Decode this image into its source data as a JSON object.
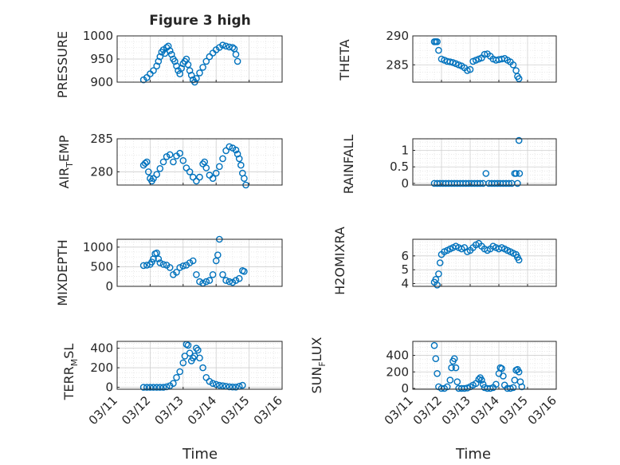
{
  "chart_data": [
    {
      "type": "scatter",
      "title": "Figure 3 high",
      "ylabel": "PRESSURE",
      "xlim": [
        "03/11",
        "03/16"
      ],
      "ylim": [
        900,
        1000
      ],
      "yticks": [
        900,
        950,
        1000
      ],
      "grid": true,
      "marker": "circle",
      "color": "#0072BD",
      "points": [
        [
          11.8,
          905
        ],
        [
          11.9,
          910
        ],
        [
          12.0,
          918
        ],
        [
          12.1,
          925
        ],
        [
          12.2,
          935
        ],
        [
          12.25,
          945
        ],
        [
          12.3,
          955
        ],
        [
          12.35,
          965
        ],
        [
          12.4,
          970
        ],
        [
          12.45,
          962
        ],
        [
          12.5,
          975
        ],
        [
          12.55,
          978
        ],
        [
          12.6,
          968
        ],
        [
          12.65,
          960
        ],
        [
          12.7,
          950
        ],
        [
          12.75,
          945
        ],
        [
          12.8,
          935
        ],
        [
          12.85,
          925
        ],
        [
          12.9,
          918
        ],
        [
          12.95,
          930
        ],
        [
          13.0,
          940
        ],
        [
          13.05,
          945
        ],
        [
          13.1,
          950
        ],
        [
          13.15,
          938
        ],
        [
          13.2,
          925
        ],
        [
          13.25,
          915
        ],
        [
          13.3,
          905
        ],
        [
          13.35,
          900
        ],
        [
          13.4,
          908
        ],
        [
          13.5,
          920
        ],
        [
          13.6,
          932
        ],
        [
          13.7,
          945
        ],
        [
          13.8,
          955
        ],
        [
          13.9,
          963
        ],
        [
          14.0,
          970
        ],
        [
          14.1,
          975
        ],
        [
          14.2,
          980
        ],
        [
          14.3,
          978
        ],
        [
          14.4,
          976
        ],
        [
          14.5,
          975
        ],
        [
          14.55,
          972
        ],
        [
          14.6,
          960
        ],
        [
          14.65,
          945
        ]
      ]
    },
    {
      "type": "scatter",
      "ylabel": "THETA",
      "xlim": [
        "03/11",
        "03/16"
      ],
      "ylim": [
        282,
        290
      ],
      "yticks": [
        285,
        290
      ],
      "grid": true,
      "marker": "circle",
      "color": "#0072BD",
      "points": [
        [
          11.75,
          289
        ],
        [
          11.8,
          289
        ],
        [
          11.85,
          289
        ],
        [
          11.9,
          287.5
        ],
        [
          12.0,
          286
        ],
        [
          12.1,
          285.8
        ],
        [
          12.2,
          285.6
        ],
        [
          12.3,
          285.5
        ],
        [
          12.4,
          285.4
        ],
        [
          12.5,
          285.2
        ],
        [
          12.6,
          285
        ],
        [
          12.7,
          284.8
        ],
        [
          12.8,
          284.5
        ],
        [
          12.9,
          284
        ],
        [
          13.0,
          284.2
        ],
        [
          13.1,
          285.6
        ],
        [
          13.2,
          285.8
        ],
        [
          13.3,
          286
        ],
        [
          13.4,
          286.2
        ],
        [
          13.5,
          286.8
        ],
        [
          13.6,
          286.9
        ],
        [
          13.7,
          286.5
        ],
        [
          13.8,
          286
        ],
        [
          13.9,
          285.8
        ],
        [
          14.0,
          285.9
        ],
        [
          14.1,
          286
        ],
        [
          14.2,
          286.1
        ],
        [
          14.3,
          285.8
        ],
        [
          14.4,
          285.5
        ],
        [
          14.5,
          285
        ],
        [
          14.6,
          284
        ],
        [
          14.65,
          283
        ],
        [
          14.7,
          282.6
        ]
      ]
    },
    {
      "type": "scatter",
      "ylabel": "AIR_TEMP",
      "xlim": [
        "03/11",
        "03/16"
      ],
      "ylim": [
        278,
        285
      ],
      "yticks": [
        280,
        285
      ],
      "grid": true,
      "marker": "circle",
      "color": "#0072BD",
      "points": [
        [
          11.8,
          281
        ],
        [
          11.85,
          281.3
        ],
        [
          11.9,
          281.5
        ],
        [
          11.95,
          280
        ],
        [
          12.0,
          279
        ],
        [
          12.05,
          278.6
        ],
        [
          12.1,
          279
        ],
        [
          12.2,
          279.6
        ],
        [
          12.3,
          280.5
        ],
        [
          12.4,
          281.5
        ],
        [
          12.5,
          282.3
        ],
        [
          12.6,
          282.6
        ],
        [
          12.7,
          281.5
        ],
        [
          12.8,
          282.4
        ],
        [
          12.9,
          282.8
        ],
        [
          13.0,
          281.7
        ],
        [
          13.1,
          280.6
        ],
        [
          13.2,
          280
        ],
        [
          13.3,
          279.2
        ],
        [
          13.4,
          278.6
        ],
        [
          13.5,
          279.2
        ],
        [
          13.6,
          281.2
        ],
        [
          13.65,
          281.5
        ],
        [
          13.7,
          280.6
        ],
        [
          13.8,
          279.5
        ],
        [
          13.9,
          279
        ],
        [
          14.0,
          279.8
        ],
        [
          14.1,
          280.8
        ],
        [
          14.2,
          282
        ],
        [
          14.3,
          283.2
        ],
        [
          14.4,
          283.8
        ],
        [
          14.5,
          283.6
        ],
        [
          14.6,
          283.3
        ],
        [
          14.65,
          282.7
        ],
        [
          14.7,
          282
        ],
        [
          14.75,
          281
        ],
        [
          14.8,
          279.8
        ],
        [
          14.85,
          279
        ],
        [
          14.9,
          278
        ]
      ]
    },
    {
      "type": "scatter",
      "ylabel": "RAINFALL",
      "xlim": [
        "03/11",
        "03/16"
      ],
      "ylim": [
        -0.05,
        1.35
      ],
      "yticks": [
        0,
        0.5,
        1
      ],
      "ytick_labels": [
        "0",
        "0.5",
        "1"
      ],
      "grid": true,
      "marker": "circle",
      "color": "#0072BD",
      "points": [
        [
          11.75,
          0
        ],
        [
          11.85,
          0
        ],
        [
          11.95,
          0
        ],
        [
          12.05,
          0
        ],
        [
          12.15,
          0
        ],
        [
          12.25,
          0
        ],
        [
          12.35,
          0
        ],
        [
          12.45,
          0
        ],
        [
          12.55,
          0
        ],
        [
          12.65,
          0
        ],
        [
          12.75,
          0
        ],
        [
          12.85,
          0
        ],
        [
          12.95,
          0
        ],
        [
          13.05,
          0
        ],
        [
          13.15,
          0
        ],
        [
          13.25,
          0
        ],
        [
          13.35,
          0
        ],
        [
          13.45,
          0
        ],
        [
          13.55,
          0.3
        ],
        [
          13.65,
          0
        ],
        [
          13.75,
          0
        ],
        [
          13.85,
          0
        ],
        [
          13.95,
          0
        ],
        [
          14.05,
          0
        ],
        [
          14.15,
          0
        ],
        [
          14.25,
          0
        ],
        [
          14.35,
          0
        ],
        [
          14.45,
          0
        ],
        [
          14.55,
          0.3
        ],
        [
          14.6,
          0.3
        ],
        [
          14.65,
          0
        ],
        [
          14.7,
          1.3
        ],
        [
          14.72,
          0.3
        ]
      ]
    },
    {
      "type": "scatter",
      "ylabel": "MIXDEPTH",
      "xlim": [
        "03/11",
        "03/16"
      ],
      "ylim": [
        0,
        1200
      ],
      "yticks": [
        0,
        500,
        1000
      ],
      "grid": true,
      "marker": "circle",
      "color": "#0072BD",
      "points": [
        [
          11.8,
          530
        ],
        [
          11.9,
          540
        ],
        [
          12.0,
          560
        ],
        [
          12.05,
          620
        ],
        [
          12.1,
          700
        ],
        [
          12.15,
          830
        ],
        [
          12.2,
          850
        ],
        [
          12.25,
          700
        ],
        [
          12.3,
          600
        ],
        [
          12.4,
          560
        ],
        [
          12.5,
          540
        ],
        [
          12.6,
          480
        ],
        [
          12.7,
          300
        ],
        [
          12.8,
          360
        ],
        [
          12.9,
          480
        ],
        [
          13.0,
          520
        ],
        [
          13.1,
          540
        ],
        [
          13.2,
          600
        ],
        [
          13.3,
          650
        ],
        [
          13.4,
          300
        ],
        [
          13.5,
          120
        ],
        [
          13.6,
          80
        ],
        [
          13.7,
          120
        ],
        [
          13.8,
          150
        ],
        [
          13.9,
          300
        ],
        [
          14.0,
          650
        ],
        [
          14.05,
          800
        ],
        [
          14.1,
          1200
        ],
        [
          14.2,
          300
        ],
        [
          14.3,
          150
        ],
        [
          14.4,
          120
        ],
        [
          14.5,
          100
        ],
        [
          14.6,
          150
        ],
        [
          14.7,
          200
        ],
        [
          14.8,
          400
        ],
        [
          14.85,
          380
        ]
      ]
    },
    {
      "type": "scatter",
      "ylabel": "H2OMIXRA",
      "xlim": [
        "03/11",
        "03/16"
      ],
      "ylim": [
        3.8,
        7.2
      ],
      "yticks": [
        4,
        5,
        6
      ],
      "grid": true,
      "marker": "circle",
      "color": "#0072BD",
      "points": [
        [
          11.75,
          4.1
        ],
        [
          11.8,
          4.3
        ],
        [
          11.85,
          3.9
        ],
        [
          11.9,
          4.7
        ],
        [
          11.95,
          5.5
        ],
        [
          12.0,
          6.1
        ],
        [
          12.1,
          6.3
        ],
        [
          12.2,
          6.4
        ],
        [
          12.3,
          6.5
        ],
        [
          12.4,
          6.6
        ],
        [
          12.5,
          6.7
        ],
        [
          12.6,
          6.6
        ],
        [
          12.7,
          6.5
        ],
        [
          12.8,
          6.6
        ],
        [
          12.9,
          6.3
        ],
        [
          13.0,
          6.4
        ],
        [
          13.1,
          6.6
        ],
        [
          13.2,
          6.8
        ],
        [
          13.3,
          6.9
        ],
        [
          13.4,
          6.7
        ],
        [
          13.5,
          6.5
        ],
        [
          13.6,
          6.4
        ],
        [
          13.7,
          6.5
        ],
        [
          13.8,
          6.7
        ],
        [
          13.9,
          6.6
        ],
        [
          14.0,
          6.5
        ],
        [
          14.1,
          6.6
        ],
        [
          14.2,
          6.5
        ],
        [
          14.3,
          6.4
        ],
        [
          14.4,
          6.3
        ],
        [
          14.5,
          6.2
        ],
        [
          14.6,
          6.1
        ],
        [
          14.65,
          5.9
        ],
        [
          14.7,
          5.7
        ]
      ]
    },
    {
      "type": "scatter",
      "ylabel": "TERR_MSL",
      "xlim": [
        "03/11",
        "03/16"
      ],
      "ylim": [
        -20,
        470
      ],
      "yticks": [
        0,
        200,
        400
      ],
      "grid": true,
      "marker": "circle",
      "color": "#0072BD",
      "points": [
        [
          11.8,
          0
        ],
        [
          11.9,
          0
        ],
        [
          12.0,
          0
        ],
        [
          12.1,
          0
        ],
        [
          12.2,
          0
        ],
        [
          12.3,
          0
        ],
        [
          12.4,
          0
        ],
        [
          12.5,
          5
        ],
        [
          12.6,
          15
        ],
        [
          12.7,
          40
        ],
        [
          12.8,
          100
        ],
        [
          12.9,
          160
        ],
        [
          13.0,
          250
        ],
        [
          13.05,
          320
        ],
        [
          13.1,
          440
        ],
        [
          13.15,
          430
        ],
        [
          13.2,
          350
        ],
        [
          13.25,
          270
        ],
        [
          13.3,
          300
        ],
        [
          13.35,
          320
        ],
        [
          13.4,
          400
        ],
        [
          13.45,
          380
        ],
        [
          13.5,
          300
        ],
        [
          13.6,
          200
        ],
        [
          13.7,
          100
        ],
        [
          13.8,
          60
        ],
        [
          13.9,
          40
        ],
        [
          14.0,
          30
        ],
        [
          14.1,
          20
        ],
        [
          14.2,
          15
        ],
        [
          14.3,
          10
        ],
        [
          14.4,
          5
        ],
        [
          14.5,
          3
        ],
        [
          14.6,
          2
        ],
        [
          14.7,
          10
        ],
        [
          14.8,
          20
        ]
      ]
    },
    {
      "type": "scatter",
      "ylabel": "SUN_FLUX",
      "xlim": [
        "03/11",
        "03/16"
      ],
      "ylim": [
        -10,
        570
      ],
      "yticks": [
        0,
        200,
        400
      ],
      "grid": true,
      "marker": "circle",
      "color": "#0072BD",
      "points": [
        [
          11.75,
          520
        ],
        [
          11.8,
          360
        ],
        [
          11.85,
          180
        ],
        [
          11.9,
          20
        ],
        [
          12.0,
          0
        ],
        [
          12.1,
          0
        ],
        [
          12.2,
          20
        ],
        [
          12.3,
          100
        ],
        [
          12.35,
          250
        ],
        [
          12.4,
          330
        ],
        [
          12.45,
          360
        ],
        [
          12.5,
          250
        ],
        [
          12.55,
          80
        ],
        [
          12.6,
          0
        ],
        [
          12.7,
          0
        ],
        [
          12.8,
          0
        ],
        [
          12.9,
          5
        ],
        [
          13.0,
          20
        ],
        [
          13.1,
          40
        ],
        [
          13.2,
          60
        ],
        [
          13.3,
          110
        ],
        [
          13.35,
          130
        ],
        [
          13.4,
          100
        ],
        [
          13.45,
          50
        ],
        [
          13.5,
          10
        ],
        [
          13.6,
          0
        ],
        [
          13.7,
          0
        ],
        [
          13.8,
          10
        ],
        [
          13.9,
          50
        ],
        [
          14.0,
          180
        ],
        [
          14.05,
          250
        ],
        [
          14.1,
          240
        ],
        [
          14.15,
          150
        ],
        [
          14.2,
          40
        ],
        [
          14.3,
          0
        ],
        [
          14.4,
          0
        ],
        [
          14.5,
          10
        ],
        [
          14.55,
          100
        ],
        [
          14.6,
          220
        ],
        [
          14.65,
          230
        ],
        [
          14.7,
          200
        ],
        [
          14.75,
          80
        ],
        [
          14.8,
          20
        ]
      ]
    }
  ],
  "x_ticks": [
    "03/11",
    "03/12",
    "03/13",
    "03/14",
    "03/15",
    "03/16"
  ],
  "xlabel": "Time",
  "colors": {
    "marker": "#0072BD",
    "axis": "#262626",
    "grid": "#dcdcdc"
  }
}
